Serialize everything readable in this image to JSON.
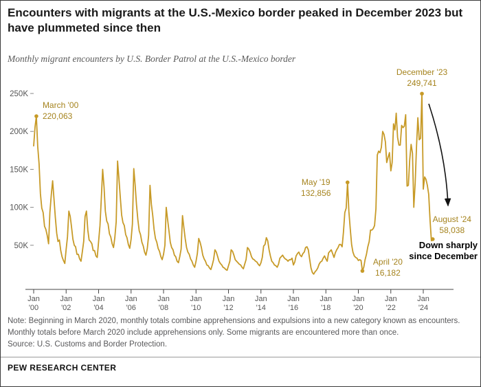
{
  "header": {
    "title": "Encounters with migrants at the U.S.-Mexico border peaked in December 2023 but have plummeted since then",
    "subtitle": "Monthly migrant encounters by U.S. Border Patrol at the U.S.-Mexico border"
  },
  "chart_data": {
    "type": "line",
    "title": "Monthly migrant encounters by U.S. Border Patrol at the U.S.-Mexico border",
    "x_start": "2000-01",
    "x_end": "2024-08",
    "ylim": [
      0,
      250000
    ],
    "grid": false,
    "y_axis": {
      "ticks": [
        {
          "label": "50K",
          "value": 50000
        },
        {
          "label": "100K",
          "value": 100000
        },
        {
          "label": "150K",
          "value": 150000
        },
        {
          "label": "200K",
          "value": 200000
        },
        {
          "label": "250K",
          "value": 250000
        }
      ]
    },
    "x_axis": {
      "month_label": "Jan",
      "year_labels": [
        "'00",
        "'02",
        "'04",
        "'06",
        "'08",
        "'10",
        "'12",
        "'14",
        "'16",
        "'18",
        "'20",
        "'22",
        "'24"
      ]
    },
    "series": [
      {
        "name": "Monthly migrant encounters",
        "color": "#C79A27",
        "values": [
          181000,
          206000,
          220063,
          180000,
          157000,
          118000,
          99000,
          93000,
          75000,
          71000,
          63000,
          52000,
          93000,
          116000,
          135000,
          112000,
          87000,
          66000,
          55000,
          57000,
          43000,
          35000,
          30000,
          26000,
          45000,
          61000,
          95000,
          88000,
          74000,
          58000,
          50000,
          48000,
          38000,
          38000,
          32000,
          29000,
          42000,
          55000,
          88000,
          95000,
          70000,
          57000,
          55000,
          52000,
          43000,
          43000,
          36000,
          34000,
          55000,
          76000,
          111000,
          150000,
          127000,
          95000,
          82000,
          78000,
          65000,
          61000,
          52000,
          47000,
          60000,
          81000,
          161000,
          139000,
          114000,
          90000,
          80000,
          76000,
          64000,
          60000,
          51000,
          46000,
          58000,
          78000,
          151000,
          129000,
          104000,
          84000,
          69000,
          64000,
          54000,
          49000,
          41000,
          37000,
          46000,
          63000,
          129000,
          104000,
          89000,
          71000,
          59000,
          54000,
          46000,
          42000,
          35000,
          31000,
          38000,
          50000,
          100000,
          84000,
          69000,
          54000,
          47000,
          44000,
          37000,
          35000,
          29000,
          27000,
          35000,
          45000,
          89000,
          74000,
          59000,
          47000,
          41000,
          38000,
          32000,
          29000,
          24000,
          21000,
          29000,
          39000,
          59000,
          54000,
          47000,
          37000,
          32000,
          29000,
          24000,
          23000,
          20000,
          18000,
          24000,
          31000,
          44000,
          41000,
          35000,
          29000,
          26000,
          24000,
          21000,
          20000,
          18000,
          17000,
          23000,
          29000,
          44000,
          42000,
          37000,
          31000,
          29000,
          27000,
          25000,
          24000,
          21000,
          19000,
          25000,
          31000,
          47000,
          45000,
          41000,
          35000,
          32000,
          31000,
          29000,
          28000,
          25000,
          23000,
          27000,
          34000,
          49000,
          51000,
          60000,
          56000,
          44000,
          36000,
          29000,
          27000,
          24000,
          23000,
          21000,
          25000,
          33000,
          35000,
          37000,
          34000,
          32000,
          31000,
          29000,
          31000,
          31000,
          33000,
          24000,
          28000,
          36000,
          39000,
          41000,
          37000,
          35000,
          39000,
          41000,
          47000,
          48000,
          44000,
          32000,
          20000,
          14000,
          12000,
          15000,
          17000,
          20000,
          25000,
          28000,
          29000,
          33000,
          36000,
          32000,
          29000,
          40000,
          42000,
          44000,
          39000,
          34000,
          40000,
          44000,
          47000,
          51000,
          51000,
          48000,
          67000,
          93000,
          99000,
          132856,
          95000,
          72000,
          51000,
          41000,
          36000,
          34000,
          33000,
          30000,
          31000,
          30000,
          16182,
          21000,
          31000,
          38000,
          48000,
          55000,
          70000,
          70000,
          72000,
          76000,
          98000,
          169000,
          174000,
          172000,
          179000,
          200000,
          196000,
          186000,
          159000,
          166000,
          172000,
          148000,
          159000,
          210000,
          202000,
          224000,
          192000,
          182000,
          182000,
          208000,
          205000,
          207000,
          222000,
          128000,
          129000,
          163000,
          183000,
          171000,
          100000,
          132000,
          181000,
          218000,
          189000,
          191000,
          249741,
          124000,
          140000,
          137000,
          129000,
          117000,
          84000,
          56000,
          58038
        ]
      }
    ],
    "annotations": [
      {
        "label": "March '00",
        "value_label": "220,063",
        "month_index": 2,
        "value": 220063
      },
      {
        "label": "May '19",
        "value_label": "132,856",
        "month_index": 232,
        "value": 132856
      },
      {
        "label": "April '20",
        "value_label": "16,182",
        "month_index": 243,
        "value": 16182
      },
      {
        "label": "December '23",
        "value_label": "249,741",
        "month_index": 287,
        "value": 249741
      },
      {
        "label": "August '24",
        "value_label": "58,038",
        "month_index": 295,
        "value": 58038
      }
    ],
    "annotation_color": "#A5831D",
    "callout": {
      "line1": "Down sharply",
      "line2": "since December"
    }
  },
  "footer": {
    "note": "Note: Beginning in March 2020, monthly totals combine apprehensions and expulsions into a new category known as encounters. Monthly totals before March 2020 include apprehensions only. Some migrants are encountered more than once.",
    "source": "Source: U.S. Customs and Border Protection.",
    "brand": "PEW RESEARCH CENTER"
  }
}
